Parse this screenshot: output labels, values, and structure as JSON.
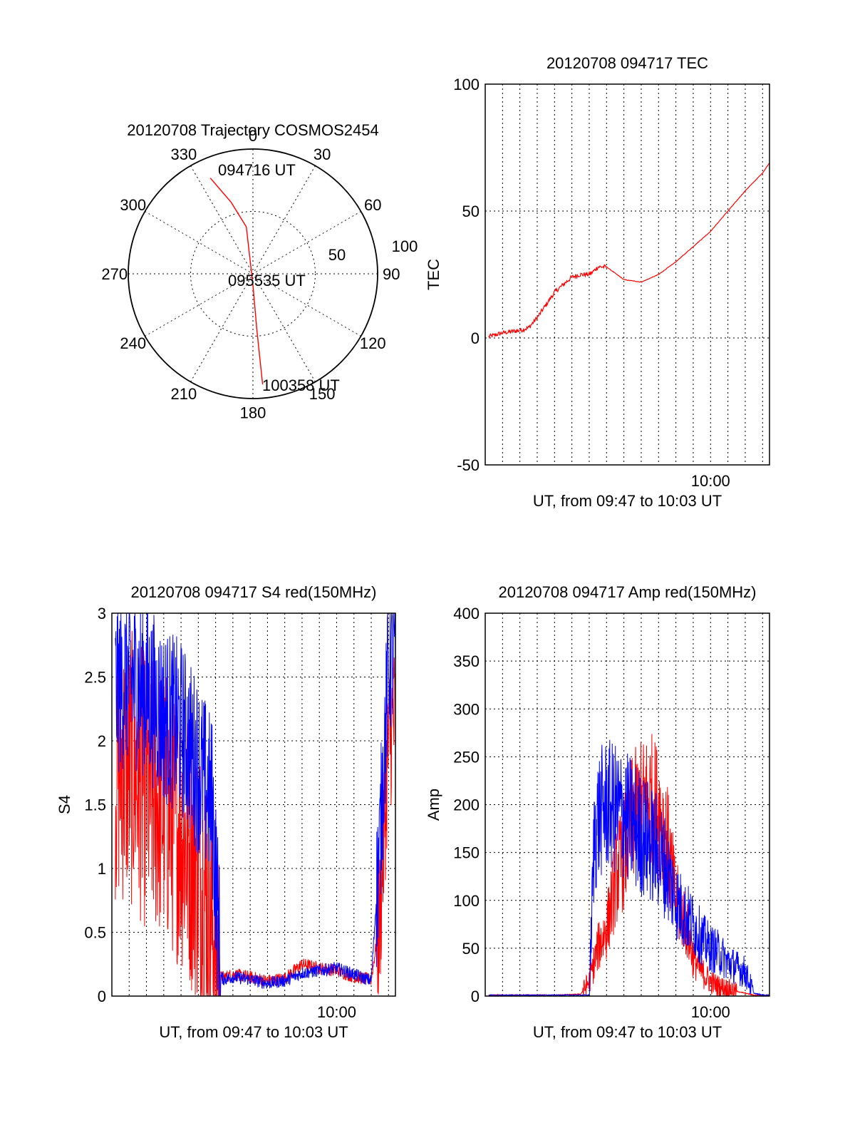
{
  "colors": {
    "red": "#ff0000",
    "blue": "#0000ff",
    "axis": "#000000",
    "background": "#ffffff"
  },
  "chart_data": [
    {
      "type": "polar",
      "title": "20120708 Trajectory COSMOS2454",
      "azimuth_labels": [
        "0",
        "30",
        "60",
        "90",
        "120",
        "150",
        "180",
        "210",
        "240",
        "270",
        "300",
        "330"
      ],
      "radial_ticks": [
        50,
        100
      ],
      "rlim": [
        0,
        100
      ],
      "grid": true,
      "series": [
        {
          "color": "#ff0000",
          "points": [
            {
              "az": 336,
              "r": 84
            },
            {
              "az": 343,
              "r": 60
            },
            {
              "az": 352,
              "r": 38
            },
            {
              "az": 180,
              "r": 9
            },
            {
              "az": 176,
              "r": 45
            },
            {
              "az": 175,
              "r": 89
            }
          ]
        }
      ],
      "annotations": [
        "094716 UT",
        "095535 UT",
        "100358 UT"
      ]
    },
    {
      "type": "line",
      "title": "20120708 094717 TEC",
      "xlabel": "UT, from 09:47 to 10:03 UT",
      "ylabel": "TEC",
      "xlim": [
        0,
        16.4
      ],
      "ylim": [
        -50,
        100
      ],
      "yticks": [
        "100",
        "50",
        "0",
        "-50"
      ],
      "xticks": [
        {
          "x": 13,
          "label": "10:00"
        }
      ],
      "grid": true,
      "series": [
        {
          "color": "#ff0000",
          "x": [
            0.2,
            1,
            2,
            2.5,
            3,
            3.5,
            4,
            4.5,
            5,
            5.5,
            6,
            6.2,
            6.5,
            7,
            8,
            9,
            10,
            11,
            12,
            13,
            14,
            15,
            16,
            16.4
          ],
          "y": [
            0.5,
            2,
            3,
            4,
            8,
            13,
            18,
            21,
            24,
            25,
            25,
            26,
            28,
            28,
            23,
            22,
            25,
            30,
            36,
            42,
            50,
            58,
            65,
            69
          ]
        }
      ]
    },
    {
      "type": "line",
      "title": "20120708 094717 S4 red(150MHz)",
      "xlabel": "UT, from 09:47 to 10:03 UT",
      "ylabel": "S4",
      "xlim": [
        0,
        16.4
      ],
      "ylim": [
        0,
        3
      ],
      "yticks": [
        "3",
        "2.5",
        "2",
        "1.5",
        "1",
        "0.5",
        "0"
      ],
      "xticks": [
        {
          "x": 13,
          "label": "10:00"
        }
      ],
      "grid": true,
      "series": [
        {
          "color": "#ff0000",
          "x": [
            0.2,
            1,
            2,
            3,
            4,
            5,
            5.8,
            6.3,
            6.5,
            7,
            8,
            9,
            10,
            11,
            12,
            13,
            14,
            15,
            15.5,
            16,
            16.4
          ],
          "y": [
            1.8,
            1.8,
            1.6,
            1.5,
            1.3,
            1.0,
            0.6,
            0.15,
            0.15,
            0.17,
            0.15,
            0.12,
            0.14,
            0.25,
            0.22,
            0.2,
            0.15,
            0.13,
            0.6,
            2.0,
            2.2
          ]
        },
        {
          "color": "#0000ff",
          "x": [
            0.2,
            1,
            2,
            3,
            4,
            5,
            5.8,
            6.3,
            6.5,
            7,
            8,
            9,
            10,
            11,
            12,
            13,
            14,
            15,
            15.5,
            16,
            16.4
          ],
          "y": [
            2.4,
            2.5,
            2.4,
            2.2,
            2.1,
            1.8,
            1.5,
            0.15,
            0.13,
            0.15,
            0.13,
            0.1,
            0.12,
            0.18,
            0.2,
            0.22,
            0.17,
            0.12,
            1.2,
            2.6,
            2.7
          ]
        }
      ]
    },
    {
      "type": "line",
      "title": "20120708 094717 Amp red(150MHz)",
      "xlabel": "UT, from 09:47 to 10:03 UT",
      "ylabel": "Amp",
      "xlim": [
        0,
        16.4
      ],
      "ylim": [
        0,
        400
      ],
      "yticks": [
        "400",
        "350",
        "300",
        "250",
        "200",
        "150",
        "100",
        "50",
        "0"
      ],
      "xticks": [
        {
          "x": 13,
          "label": "10:00"
        }
      ],
      "grid": true,
      "series": [
        {
          "color": "#ff0000",
          "x": [
            0.2,
            2,
            4,
            5.5,
            6,
            6.5,
            7,
            7.5,
            8,
            8.5,
            9,
            9.5,
            10,
            10.5,
            11,
            11.5,
            12,
            12.5,
            13,
            13.5,
            14,
            14.5,
            15,
            15.5,
            16,
            16.4
          ],
          "y": [
            1,
            1,
            1,
            2,
            15,
            50,
            70,
            120,
            150,
            185,
            200,
            210,
            195,
            160,
            100,
            80,
            40,
            25,
            15,
            10,
            8,
            5,
            3,
            1,
            1,
            1
          ]
        },
        {
          "color": "#0000ff",
          "x": [
            0.2,
            2,
            4,
            5.5,
            6,
            6.3,
            6.6,
            7,
            7.5,
            8,
            8.5,
            9,
            9.5,
            10,
            10.5,
            11,
            11.5,
            12,
            12.5,
            13,
            13.5,
            14,
            14.5,
            15,
            15.5,
            16,
            16.4
          ],
          "y": [
            1,
            1,
            1,
            1,
            1,
            170,
            190,
            200,
            195,
            190,
            180,
            170,
            160,
            150,
            130,
            100,
            85,
            75,
            60,
            50,
            45,
            35,
            30,
            25,
            3,
            1,
            1
          ]
        }
      ]
    }
  ]
}
